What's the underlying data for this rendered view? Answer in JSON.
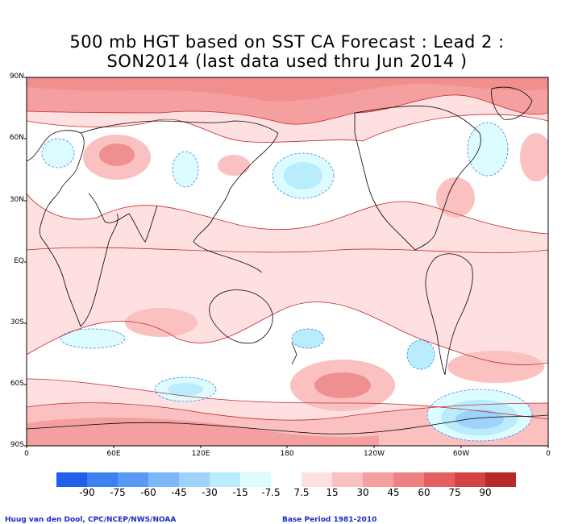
{
  "title": {
    "line1": "500 mb HGT based on SST CA Forecast : Lead 2 :",
    "line2": "SON2014 (last data used thru Jun 2014 )"
  },
  "map": {
    "lat_labels": [
      "90N",
      "60N",
      "30N",
      "EQ",
      "30S",
      "60S",
      "90S"
    ],
    "lon_labels": [
      "0",
      "60E",
      "120E",
      "180",
      "120W",
      "60W",
      "0"
    ]
  },
  "legend": {
    "colors": [
      "#2060e8",
      "#3c82ee",
      "#5a9af4",
      "#7cb8f8",
      "#9ed2fa",
      "#b9ecfc",
      "#dcfcff",
      "#ffffff",
      "#ffe0e0",
      "#fbc0c0",
      "#f5a0a0",
      "#ee8282",
      "#e46060",
      "#d44444",
      "#b82a2a"
    ],
    "labels": [
      "-90",
      "-75",
      "-60",
      "-45",
      "-30",
      "-15",
      "-7.5",
      "7.5",
      "15",
      "30",
      "45",
      "60",
      "75",
      "90"
    ]
  },
  "credits": {
    "left": "Huug van den Dool, CPC/NCEP/NWS/NOAA",
    "right": "Base Period 1981-2010"
  }
}
